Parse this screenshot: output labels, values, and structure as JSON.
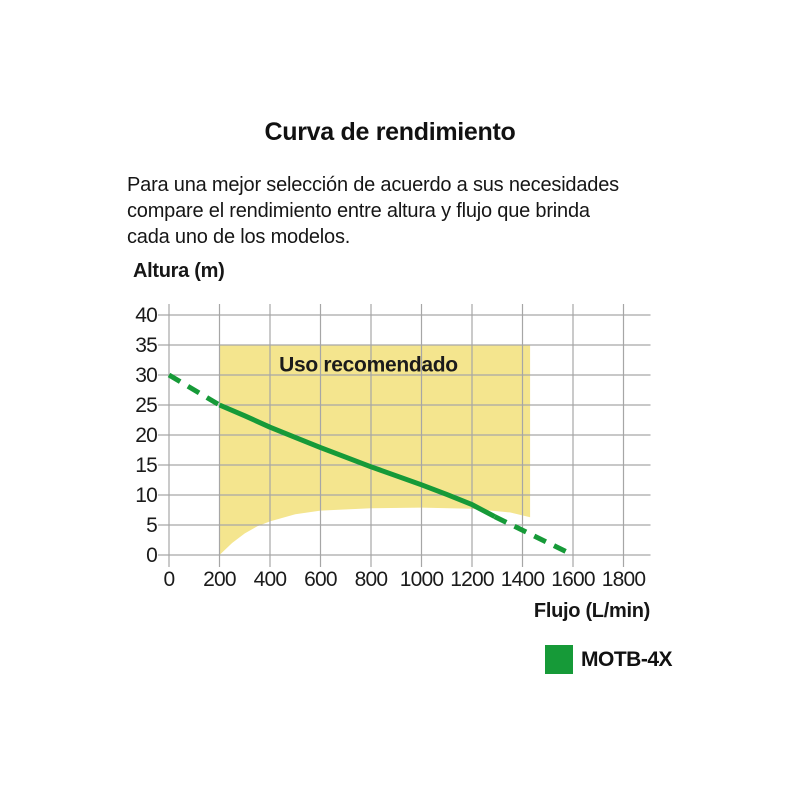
{
  "header": {
    "title": "Curva de rendimiento",
    "description_lines": [
      "Para una mejor selección de acuerdo a sus necesidades",
      "compare el rendimiento entre altura y flujo que brinda",
      "cada uno de los modelos."
    ]
  },
  "chart_data": {
    "type": "line",
    "title": "Curva de rendimiento",
    "xlabel": "Flujo (L/min)",
    "ylabel": "Altura (m)",
    "xlim": [
      0,
      1800
    ],
    "ylim": [
      0,
      40
    ],
    "xticks": [
      0,
      200,
      400,
      600,
      800,
      1000,
      1200,
      1400,
      1600,
      1800
    ],
    "yticks": [
      0,
      5,
      10,
      15,
      20,
      25,
      30,
      35,
      40
    ],
    "grid": true,
    "colors": {
      "line_green": "#169a38",
      "region_yellow": "#f4e58e",
      "gridline": "#a6a6a6",
      "text": "#1b1b1b"
    },
    "recommended_region": {
      "label": "Uso recomendado",
      "fill": "#f4e58e",
      "x_left": 200,
      "x_right": 1430,
      "y_top": 35,
      "bottom_boundary": [
        [
          200,
          0
        ],
        [
          250,
          2.0
        ],
        [
          300,
          3.6
        ],
        [
          350,
          4.8
        ],
        [
          400,
          5.6
        ],
        [
          500,
          6.8
        ],
        [
          600,
          7.4
        ],
        [
          800,
          7.8
        ],
        [
          1000,
          7.9
        ],
        [
          1200,
          7.7
        ],
        [
          1350,
          7.1
        ],
        [
          1430,
          6.3
        ]
      ]
    },
    "series": [
      {
        "name": "MOTB-4X",
        "color": "#169a38",
        "segments": [
          {
            "style": "dashed",
            "points": [
              [
                0,
                30
              ],
              [
                200,
                25
              ]
            ]
          },
          {
            "style": "solid",
            "points": [
              [
                200,
                25
              ],
              [
                300,
                23.2
              ],
              [
                400,
                21.3
              ],
              [
                500,
                19.6
              ],
              [
                600,
                17.9
              ],
              [
                700,
                16.3
              ],
              [
                800,
                14.7
              ],
              [
                900,
                13.2
              ],
              [
                1000,
                11.7
              ],
              [
                1100,
                10.1
              ],
              [
                1200,
                8.4
              ],
              [
                1290,
                6.4
              ]
            ]
          },
          {
            "style": "dashed",
            "points": [
              [
                1290,
                6.4
              ],
              [
                1600,
                0
              ]
            ]
          }
        ]
      }
    ],
    "legend": {
      "position": "bottom-right",
      "entries": [
        {
          "label": "MOTB-4X",
          "color": "#169a38"
        }
      ]
    }
  }
}
